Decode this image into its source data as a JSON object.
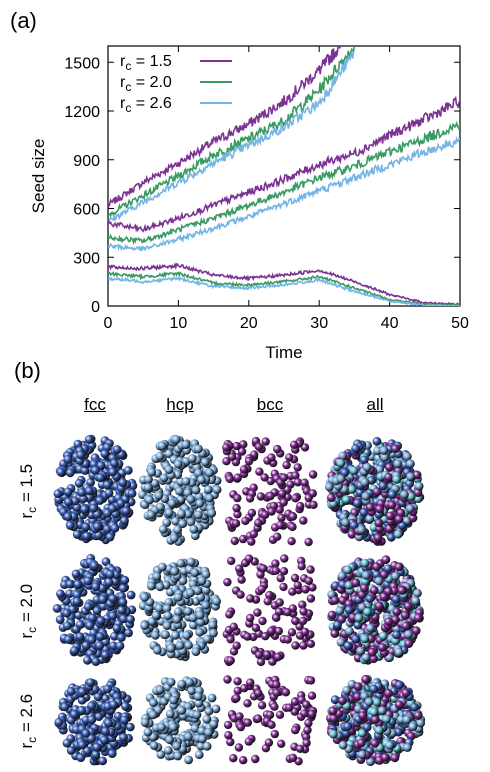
{
  "panel_a_label": "(a)",
  "panel_b_label": "(b)",
  "chart_data": {
    "type": "line",
    "xlabel": "Time",
    "ylabel": "Seed size",
    "xlim": [
      0,
      50
    ],
    "ylim": [
      0,
      1600
    ],
    "xticks": [
      "0",
      "10",
      "20",
      "30",
      "40",
      "50"
    ],
    "yticks": [
      "0",
      "300",
      "600",
      "900",
      "1200",
      "1500"
    ],
    "legend": {
      "placement": "top-left",
      "entries": [
        "r_c = 1.5",
        "r_c = 2.0",
        "r_c = 2.6"
      ]
    },
    "colors": {
      "rc15": "#7b3294",
      "rc20": "#3a9a63",
      "rc26": "#74b4e6"
    },
    "grid": false,
    "series": [
      {
        "name": "r_c = 1.5",
        "run": "high",
        "x": [
          0,
          5,
          10,
          15,
          20,
          25,
          30,
          33
        ],
        "values": [
          620,
          760,
          880,
          1010,
          1120,
          1260,
          1450,
          1600
        ]
      },
      {
        "name": "r_c = 2.0",
        "run": "high",
        "x": [
          0,
          5,
          10,
          15,
          20,
          25,
          30,
          35
        ],
        "values": [
          560,
          680,
          800,
          930,
          1030,
          1140,
          1330,
          1600
        ]
      },
      {
        "name": "r_c = 2.6",
        "run": "high",
        "x": [
          0,
          5,
          10,
          15,
          20,
          25,
          30,
          35
        ],
        "values": [
          520,
          640,
          760,
          880,
          990,
          1100,
          1250,
          1560
        ]
      },
      {
        "name": "r_c = 1.5",
        "run": "mid",
        "x": [
          0,
          5,
          10,
          15,
          20,
          25,
          30,
          35,
          40,
          45,
          50
        ],
        "values": [
          510,
          470,
          540,
          620,
          700,
          780,
          870,
          940,
          1050,
          1150,
          1260
        ]
      },
      {
        "name": "r_c = 2.0",
        "run": "mid",
        "x": [
          0,
          5,
          10,
          15,
          20,
          25,
          30,
          35,
          40,
          45,
          50
        ],
        "values": [
          420,
          400,
          470,
          540,
          620,
          700,
          790,
          860,
          950,
          1030,
          1120
        ]
      },
      {
        "name": "r_c = 2.6",
        "run": "mid",
        "x": [
          0,
          5,
          10,
          15,
          20,
          25,
          30,
          35,
          40,
          45,
          50
        ],
        "values": [
          370,
          350,
          410,
          480,
          550,
          630,
          710,
          790,
          870,
          950,
          1020
        ]
      },
      {
        "name": "r_c = 1.5",
        "run": "low",
        "x": [
          0,
          5,
          10,
          15,
          20,
          25,
          30,
          35,
          40,
          45,
          50
        ],
        "values": [
          240,
          230,
          250,
          190,
          170,
          190,
          220,
          150,
          70,
          20,
          10
        ]
      },
      {
        "name": "r_c = 2.0",
        "run": "low",
        "x": [
          0,
          5,
          10,
          15,
          20,
          25,
          30,
          35,
          40,
          45,
          50
        ],
        "values": [
          200,
          180,
          200,
          140,
          130,
          150,
          180,
          110,
          40,
          10,
          5
        ]
      },
      {
        "name": "r_c = 2.6",
        "run": "low",
        "x": [
          0,
          5,
          10,
          15,
          20,
          25,
          30,
          35,
          40,
          45,
          50
        ],
        "values": [
          170,
          150,
          170,
          120,
          110,
          130,
          160,
          90,
          30,
          5,
          0
        ]
      }
    ]
  },
  "panel_b": {
    "column_headers": [
      "fcc",
      "hcp",
      "bcc",
      "all"
    ],
    "row_headers": [
      "r_c = 1.5",
      "r_c = 2.0",
      "r_c = 2.6"
    ],
    "colors": {
      "fcc": "#3a5fb8",
      "hcp": "#7aa9d8",
      "bcc": "#7b2a8e",
      "all_mix": [
        "#3a5fb8",
        "#7aa9d8",
        "#7b2a8e",
        "#5fc8d8"
      ]
    }
  }
}
